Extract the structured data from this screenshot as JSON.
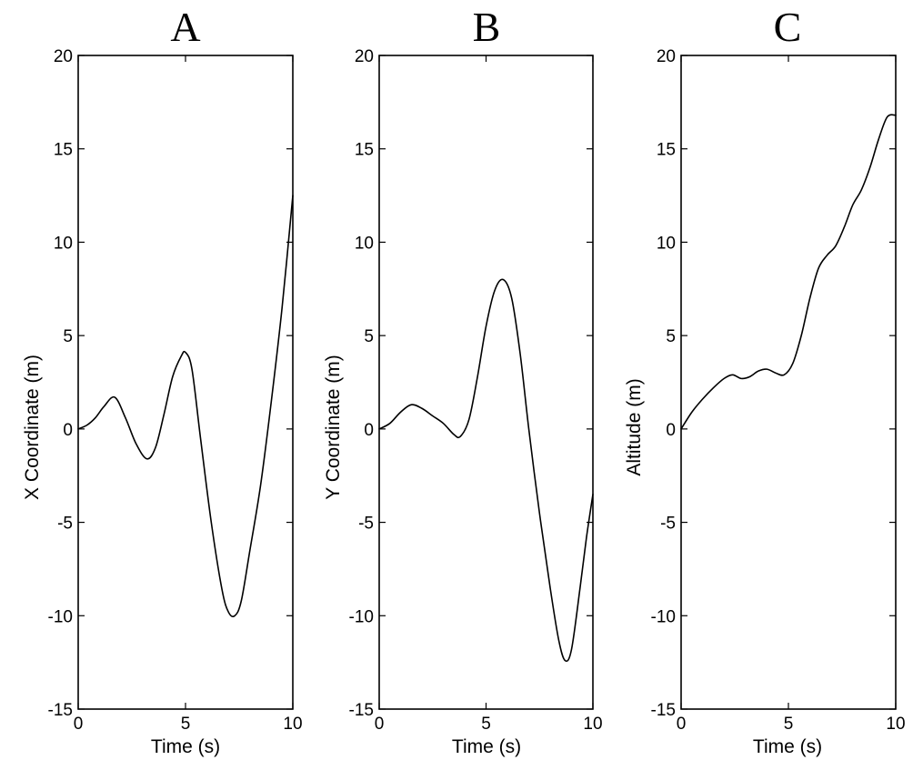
{
  "chart_data": [
    {
      "type": "line",
      "panel_title": "A",
      "xlabel": "Time (s)",
      "ylabel": "X Coordinate (m)",
      "xlim": [
        0,
        10
      ],
      "ylim": [
        -15,
        20
      ],
      "xticks": [
        "0",
        "5",
        "10"
      ],
      "yticks": [
        "-15",
        "-10",
        "-5",
        "0",
        "5",
        "10",
        "15",
        "20"
      ],
      "grid": false,
      "series": [
        {
          "x": [
            0,
            0.4,
            0.8,
            1.2,
            1.7,
            2.2,
            2.7,
            3.2,
            3.6,
            4.0,
            4.4,
            4.8,
            5.0,
            5.3,
            5.7,
            6.2,
            6.7,
            7.0,
            7.3,
            7.6,
            8.0,
            8.5,
            9.0,
            9.5,
            10.0
          ],
          "y": [
            0.0,
            0.2,
            0.6,
            1.2,
            1.7,
            0.6,
            -0.8,
            -1.6,
            -1.0,
            0.8,
            2.8,
            3.9,
            4.1,
            3.2,
            -0.5,
            -5.0,
            -8.6,
            -9.8,
            -10.0,
            -9.2,
            -6.5,
            -3.0,
            1.5,
            6.5,
            12.5
          ]
        }
      ]
    },
    {
      "type": "line",
      "panel_title": "B",
      "xlabel": "Time (s)",
      "ylabel": "Y Coordinate (m)",
      "xlim": [
        0,
        10
      ],
      "ylim": [
        -15,
        20
      ],
      "xticks": [
        "0",
        "5",
        "10"
      ],
      "yticks": [
        "-15",
        "-10",
        "-5",
        "0",
        "5",
        "10",
        "15",
        "20"
      ],
      "grid": false,
      "series": [
        {
          "x": [
            0,
            0.5,
            1.0,
            1.5,
            2.0,
            2.5,
            3.0,
            3.5,
            3.8,
            4.2,
            4.6,
            5.0,
            5.4,
            5.8,
            6.2,
            6.6,
            7.0,
            7.5,
            8.0,
            8.4,
            8.7,
            9.0,
            9.4,
            9.7,
            10.0
          ],
          "y": [
            0.0,
            0.3,
            0.9,
            1.3,
            1.1,
            0.7,
            0.3,
            -0.3,
            -0.4,
            0.5,
            2.8,
            5.5,
            7.4,
            8.0,
            7.0,
            4.0,
            0.0,
            -4.5,
            -8.5,
            -11.3,
            -12.4,
            -11.8,
            -8.5,
            -5.8,
            -3.5
          ]
        }
      ]
    },
    {
      "type": "line",
      "panel_title": "C",
      "xlabel": "Time (s)",
      "ylabel": "Altitude (m)",
      "xlim": [
        0,
        10
      ],
      "ylim": [
        -15,
        20
      ],
      "xticks": [
        "0",
        "5",
        "10"
      ],
      "yticks": [
        "-15",
        "-10",
        "-5",
        "0",
        "5",
        "10",
        "15",
        "20"
      ],
      "grid": false,
      "series": [
        {
          "x": [
            0,
            0.5,
            1.0,
            1.5,
            2.0,
            2.4,
            2.8,
            3.2,
            3.6,
            4.0,
            4.4,
            4.8,
            5.2,
            5.6,
            6.0,
            6.4,
            6.8,
            7.2,
            7.6,
            8.0,
            8.4,
            8.8,
            9.2,
            9.6,
            10.0
          ],
          "y": [
            0.0,
            0.9,
            1.6,
            2.2,
            2.7,
            2.9,
            2.7,
            2.8,
            3.1,
            3.2,
            3.0,
            2.9,
            3.5,
            5.0,
            7.0,
            8.6,
            9.3,
            9.8,
            10.8,
            12.0,
            12.8,
            14.0,
            15.5,
            16.7,
            16.8
          ]
        }
      ]
    }
  ]
}
